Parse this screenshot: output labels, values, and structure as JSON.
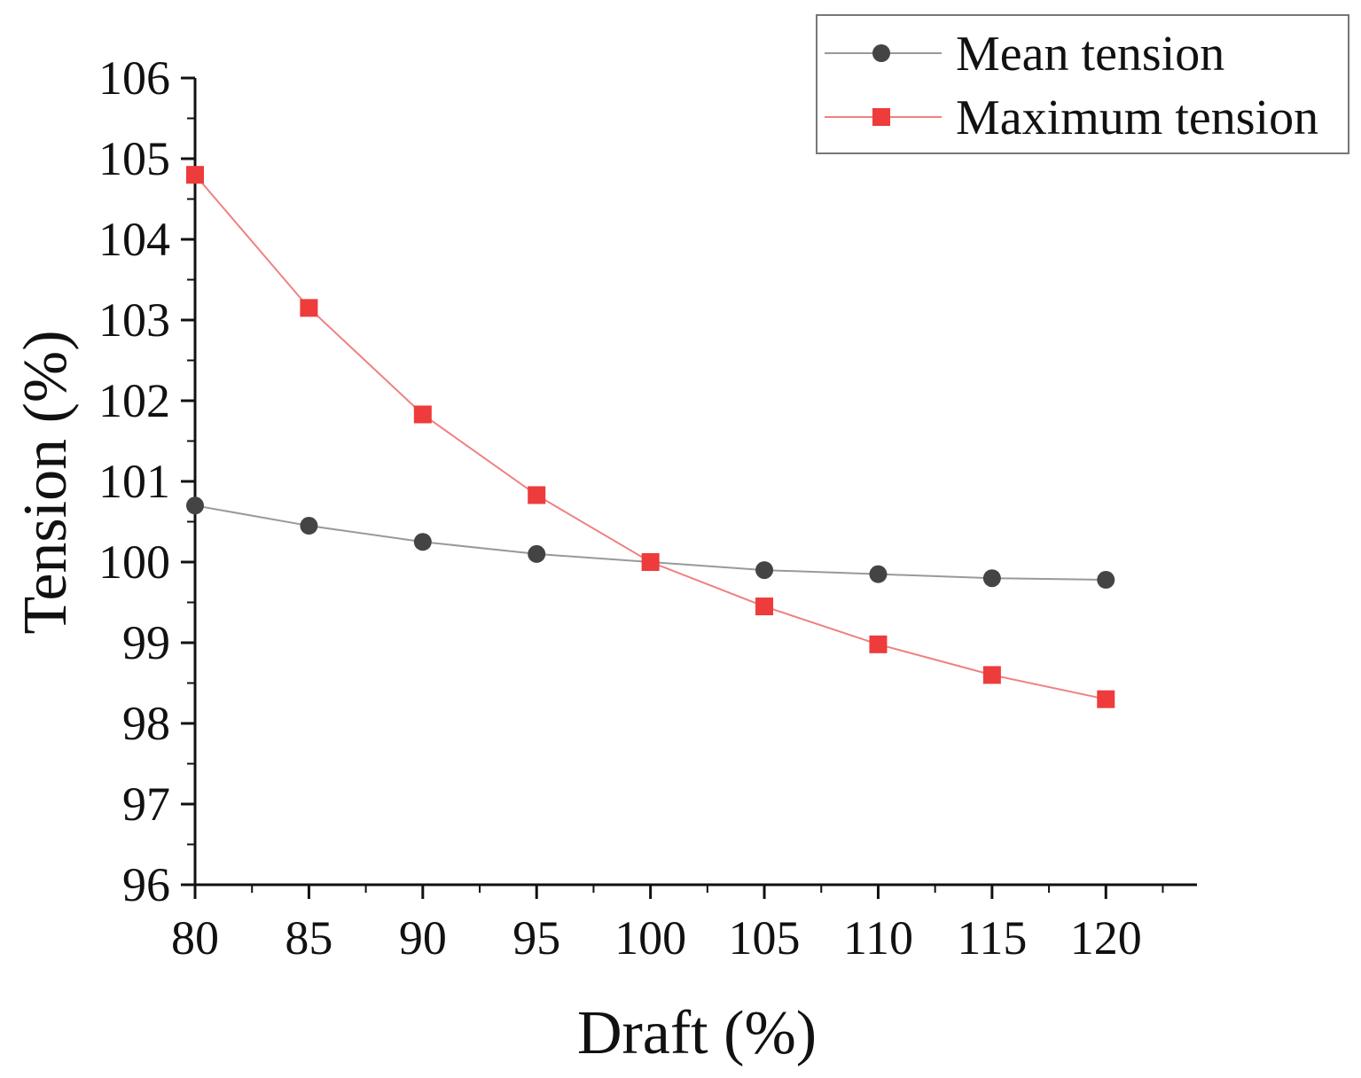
{
  "chart_data": {
    "type": "line",
    "xlabel": "Draft (%)",
    "ylabel": "Tension  (%)",
    "x": [
      80,
      85,
      90,
      95,
      100,
      105,
      110,
      115,
      120
    ],
    "xlim": [
      80,
      124
    ],
    "ylim": [
      96,
      106
    ],
    "x_ticks": [
      80,
      85,
      90,
      95,
      100,
      105,
      110,
      115,
      120
    ],
    "y_ticks": [
      96,
      97,
      98,
      99,
      100,
      101,
      102,
      103,
      104,
      105,
      106
    ],
    "grid": false,
    "legend_position": "top-right",
    "series": [
      {
        "name": "Mean tension",
        "marker": "circle",
        "color": "#444444",
        "line_color": "#999999",
        "values": [
          100.7,
          100.45,
          100.25,
          100.1,
          100.0,
          99.9,
          99.85,
          99.8,
          99.78
        ]
      },
      {
        "name": "Maximum tension",
        "marker": "square",
        "color": "#ee3b3b",
        "line_color": "#f08080",
        "values": [
          104.8,
          103.15,
          101.83,
          100.83,
          100.0,
          99.45,
          98.98,
          98.6,
          98.3
        ]
      }
    ]
  }
}
